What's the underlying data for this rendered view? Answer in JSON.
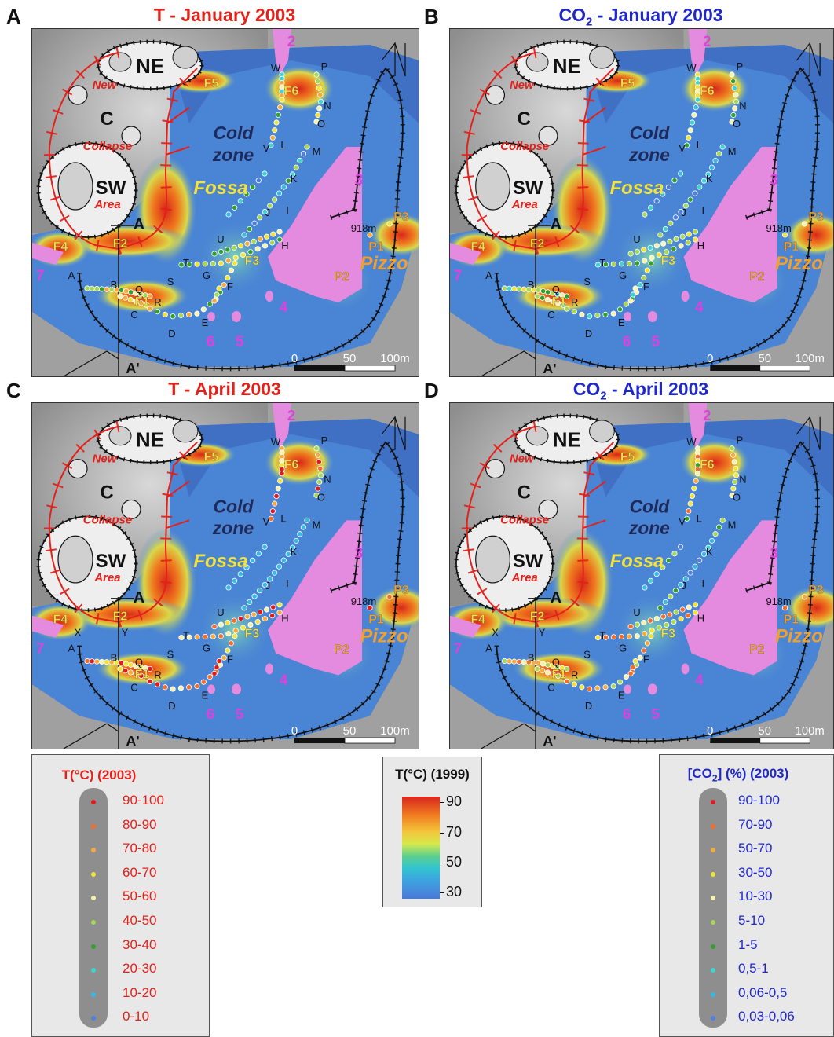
{
  "panels": [
    {
      "letter": "A",
      "title_main": "T - January 2003",
      "title_color": "#e3211b",
      "type": "T",
      "month": "jan"
    },
    {
      "letter": "B",
      "title_prefix": "CO",
      "title_sub": "2",
      "title_suffix": " - January 2003",
      "title_color": "#2028c8",
      "type": "CO2",
      "month": "jan"
    },
    {
      "letter": "C",
      "title_main": "T - April 2003",
      "title_color": "#e3211b",
      "type": "T",
      "month": "apr"
    },
    {
      "letter": "D",
      "title_prefix": "CO",
      "title_sub": "2",
      "title_suffix": " - April 2003",
      "title_color": "#2028c8",
      "type": "CO2",
      "month": "apr"
    }
  ],
  "map_labels": {
    "ne": "NE",
    "c": "C",
    "sw": "SW",
    "new": "New",
    "collapse": "Collapse",
    "area": "Area",
    "cold": "Cold",
    "zone": "zone",
    "fossa": "Fossa",
    "pizzo": "Pizzo",
    "elev": "918m",
    "a": "A",
    "a_prime": "A'",
    "fumaroles": [
      "F1",
      "F2",
      "F3",
      "F4",
      "F5",
      "F6",
      "P1",
      "P2",
      "P3"
    ],
    "sites": [
      "2",
      "3",
      "4",
      "5",
      "6",
      "7"
    ],
    "profile_letters": [
      "W",
      "P",
      "N",
      "O",
      "M",
      "V",
      "L",
      "K",
      "I",
      "J",
      "U",
      "H",
      "T",
      "S",
      "G",
      "F",
      "A",
      "B",
      "Q",
      "R",
      "C",
      "D",
      "E"
    ],
    "april_extra_letters": [
      "X",
      "Y"
    ],
    "scale": [
      "0",
      "50",
      "100m"
    ]
  },
  "legend_T": {
    "title": "T(°C) (2003)",
    "color": "#e3211b",
    "classes": [
      {
        "label": "90-100",
        "dot": "#e31a1c"
      },
      {
        "label": "80-90",
        "dot": "#f46d2a"
      },
      {
        "label": "70-80",
        "dot": "#f8a83c"
      },
      {
        "label": "60-70",
        "dot": "#f2e33a"
      },
      {
        "label": "50-60",
        "dot": "#f6f2b0"
      },
      {
        "label": "40-50",
        "dot": "#a6d854"
      },
      {
        "label": "30-40",
        "dot": "#33a02c"
      },
      {
        "label": "20-30",
        "dot": "#3fd4d4"
      },
      {
        "label": "10-20",
        "dot": "#38b8e8"
      },
      {
        "label": "0-10",
        "dot": "#4f80e0"
      }
    ]
  },
  "legend_1999": {
    "title": "T(°C) (1999)",
    "ticks": [
      "90",
      "70",
      "50",
      "30"
    ]
  },
  "legend_CO2": {
    "title_prefix": "[CO",
    "title_sub": "2",
    "title_suffix": "] (%) (2003)",
    "color": "#2028c8",
    "classes": [
      {
        "label": "90-100",
        "dot": "#e31a1c"
      },
      {
        "label": "70-90",
        "dot": "#f46d2a"
      },
      {
        "label": "50-70",
        "dot": "#f8a83c"
      },
      {
        "label": "30-50",
        "dot": "#f2e33a"
      },
      {
        "label": "10-30",
        "dot": "#f6f2b0"
      },
      {
        "label": "5-10",
        "dot": "#a6d854"
      },
      {
        "label": "1-5",
        "dot": "#33a02c"
      },
      {
        "label": "0,5-1",
        "dot": "#3fd4d4"
      },
      {
        "label": "0,06-0,5",
        "dot": "#38b8e8"
      },
      {
        "label": "0,03-0,06",
        "dot": "#4f80e0"
      }
    ]
  }
}
